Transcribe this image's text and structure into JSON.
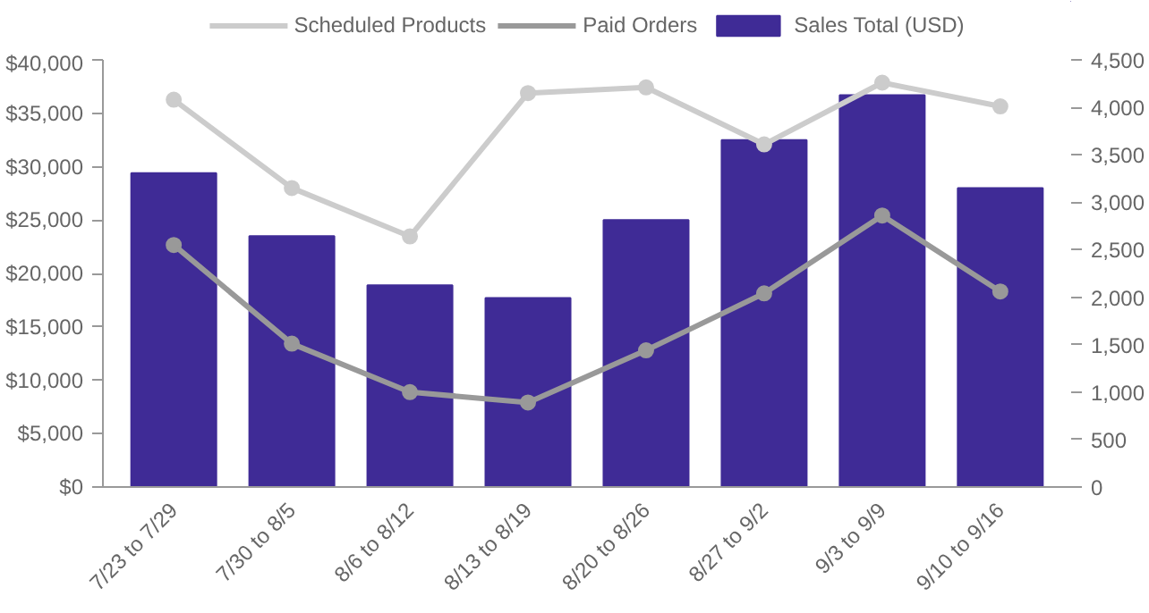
{
  "chart_data": {
    "type": "bar",
    "categories": [
      "7/23 to 7/29",
      "7/30 to 8/5",
      "8/6 to 8/12",
      "8/13 to 8/19",
      "8/20 to 8/26",
      "8/27 to 9/2",
      "9/3 to 9/9",
      "9/10 to 9/16"
    ],
    "series": [
      {
        "name": "Scheduled Products",
        "type": "line",
        "axis": "y2",
        "color": "#cccccc",
        "values": [
          4080,
          3150,
          2640,
          4150,
          4210,
          3610,
          4260,
          4010
        ]
      },
      {
        "name": "Paid Orders",
        "type": "line",
        "axis": "y2",
        "color": "#999999",
        "values": [
          2550,
          1510,
          1000,
          890,
          1440,
          2040,
          2860,
          2060
        ]
      },
      {
        "name": "Sales Total (USD)",
        "color": "#3f2b96",
        "values": [
          29400,
          23500,
          18900,
          17700,
          25000,
          32500,
          36700,
          28000
        ]
      }
    ],
    "ylim": [
      0,
      40000
    ],
    "yticks": [
      {
        "value": 0,
        "label": "$0"
      },
      {
        "value": 5000,
        "label": "$5,000"
      },
      {
        "value": 10000,
        "label": "$10,000"
      },
      {
        "value": 15000,
        "label": "$15,000"
      },
      {
        "value": 20000,
        "label": "$20,000"
      },
      {
        "value": 25000,
        "label": "$25,000"
      },
      {
        "value": 30000,
        "label": "$30,000"
      },
      {
        "value": 35000,
        "label": "$35,000"
      },
      {
        "value": 40000,
        "label": "$40,000"
      }
    ],
    "y2lim": [
      0,
      4500
    ],
    "y2ticks": [
      0,
      500,
      {
        "value": 1000,
        "label": "1,000"
      },
      {
        "value": 1500,
        "label": "1,500"
      },
      {
        "value": 2000,
        "label": "2,000"
      },
      {
        "value": 2500,
        "label": "2,500"
      },
      {
        "value": 3000,
        "label": "3,000"
      },
      {
        "value": 3500,
        "label": "3,500"
      },
      {
        "value": 4000,
        "label": "4,000"
      },
      {
        "value": 4500,
        "label": "4,500"
      }
    ],
    "grid": false,
    "legend": "top",
    "marker": "circle",
    "line_style": "solid"
  }
}
